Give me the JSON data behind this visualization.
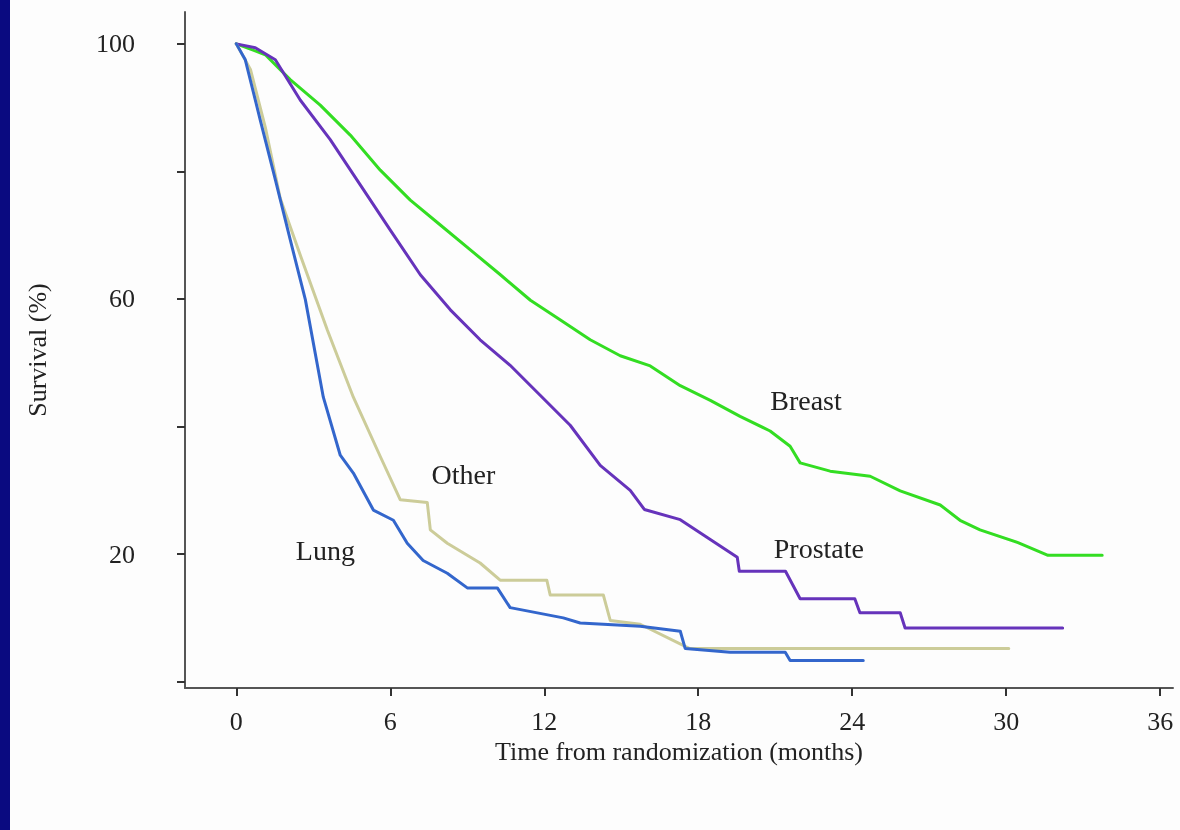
{
  "chart_data": {
    "type": "line",
    "xlabel": "Time from randomization (months)",
    "ylabel": "Survival (%)",
    "xlim": [
      -2,
      36.5
    ],
    "xticks": [
      0,
      6,
      12,
      18,
      24,
      30,
      36
    ],
    "ylim": [
      -1,
      105
    ],
    "yticks": [
      {
        "value": 0,
        "label": null
      },
      20,
      {
        "value": 40,
        "label": null
      },
      60,
      {
        "value": 80,
        "label": null
      },
      100
    ],
    "grid": false,
    "legend": false,
    "marker": "none",
    "line_style": "solid",
    "series": [
      {
        "name": "Breast",
        "color": "#33dd22",
        "x": [
          0,
          1.13,
          2.1,
          3.27,
          4.44,
          5.61,
          6.78,
          7.95,
          9.12,
          10.29,
          11.46,
          12.63,
          13.79,
          14.96,
          16.13,
          17.3,
          18.47,
          19.63,
          20.8,
          21.58,
          21.97,
          23.14,
          24.7,
          25.87,
          27.43,
          28.2,
          28.98,
          30.46,
          31.63,
          33.74
        ],
        "values": [
          100,
          98.3,
          94.4,
          90.4,
          85.7,
          80.2,
          75.5,
          71.6,
          67.7,
          63.8,
          59.8,
          56.7,
          53.6,
          51.1,
          49.5,
          46.4,
          44.1,
          41.6,
          39.3,
          36.9,
          34.3,
          33,
          32.2,
          29.9,
          27.7,
          25.3,
          23.8,
          21.8,
          19.8,
          19.8
        ]
      },
      {
        "name": "Prostate",
        "color": "#6633bb",
        "x": [
          0,
          0.74,
          1.52,
          2.49,
          3.66,
          4.83,
          6,
          7.17,
          8.34,
          9.5,
          10.67,
          11.84,
          13.01,
          14.18,
          15.35,
          15.9,
          17.3,
          19.52,
          19.6,
          21.4,
          21.97,
          24.1,
          24.3,
          25.87,
          26.06,
          32.2
        ],
        "values": [
          100,
          99.4,
          97.5,
          91.2,
          85,
          77.9,
          70.8,
          63.8,
          58.3,
          53.6,
          49.6,
          44.9,
          40.2,
          33.9,
          30,
          27,
          25.4,
          19.5,
          17.3,
          17.3,
          13,
          13,
          10.8,
          10.8,
          8.4,
          8.4
        ]
      },
      {
        "name": "Other",
        "color": "#cccc99",
        "x": [
          0,
          0.55,
          1.13,
          1.71,
          2.49,
          3.55,
          4.56,
          5.61,
          6.39,
          7.44,
          7.56,
          8.22,
          9.5,
          10.28,
          12.1,
          12.23,
          14.3,
          14.57,
          15.74,
          17.65,
          30.1
        ],
        "values": [
          100,
          96,
          86.9,
          75.8,
          66.9,
          55.1,
          44.6,
          35.3,
          28.5,
          28.1,
          23.8,
          21.7,
          18.6,
          15.9,
          15.9,
          13.6,
          13.6,
          9.6,
          9,
          5.2,
          5.2
        ]
      },
      {
        "name": "Lung",
        "color": "#3366cc",
        "x": [
          0,
          0.35,
          0.93,
          1.52,
          2.1,
          2.69,
          3.39,
          4.05,
          4.56,
          5.34,
          6.12,
          6.66,
          7.28,
          8.22,
          9,
          10.17,
          10.67,
          12.74,
          13.4,
          15.74,
          17.3,
          17.49,
          19.24,
          21.39,
          21.58,
          24.43
        ],
        "values": [
          100,
          97.5,
          88.1,
          78.7,
          69.3,
          59.9,
          44.6,
          35.5,
          32.7,
          26.9,
          25.3,
          21.7,
          19,
          17,
          14.7,
          14.7,
          11.6,
          10,
          9.2,
          8.7,
          7.9,
          5.2,
          4.6,
          4.6,
          3.3,
          3.3
        ]
      }
    ]
  }
}
